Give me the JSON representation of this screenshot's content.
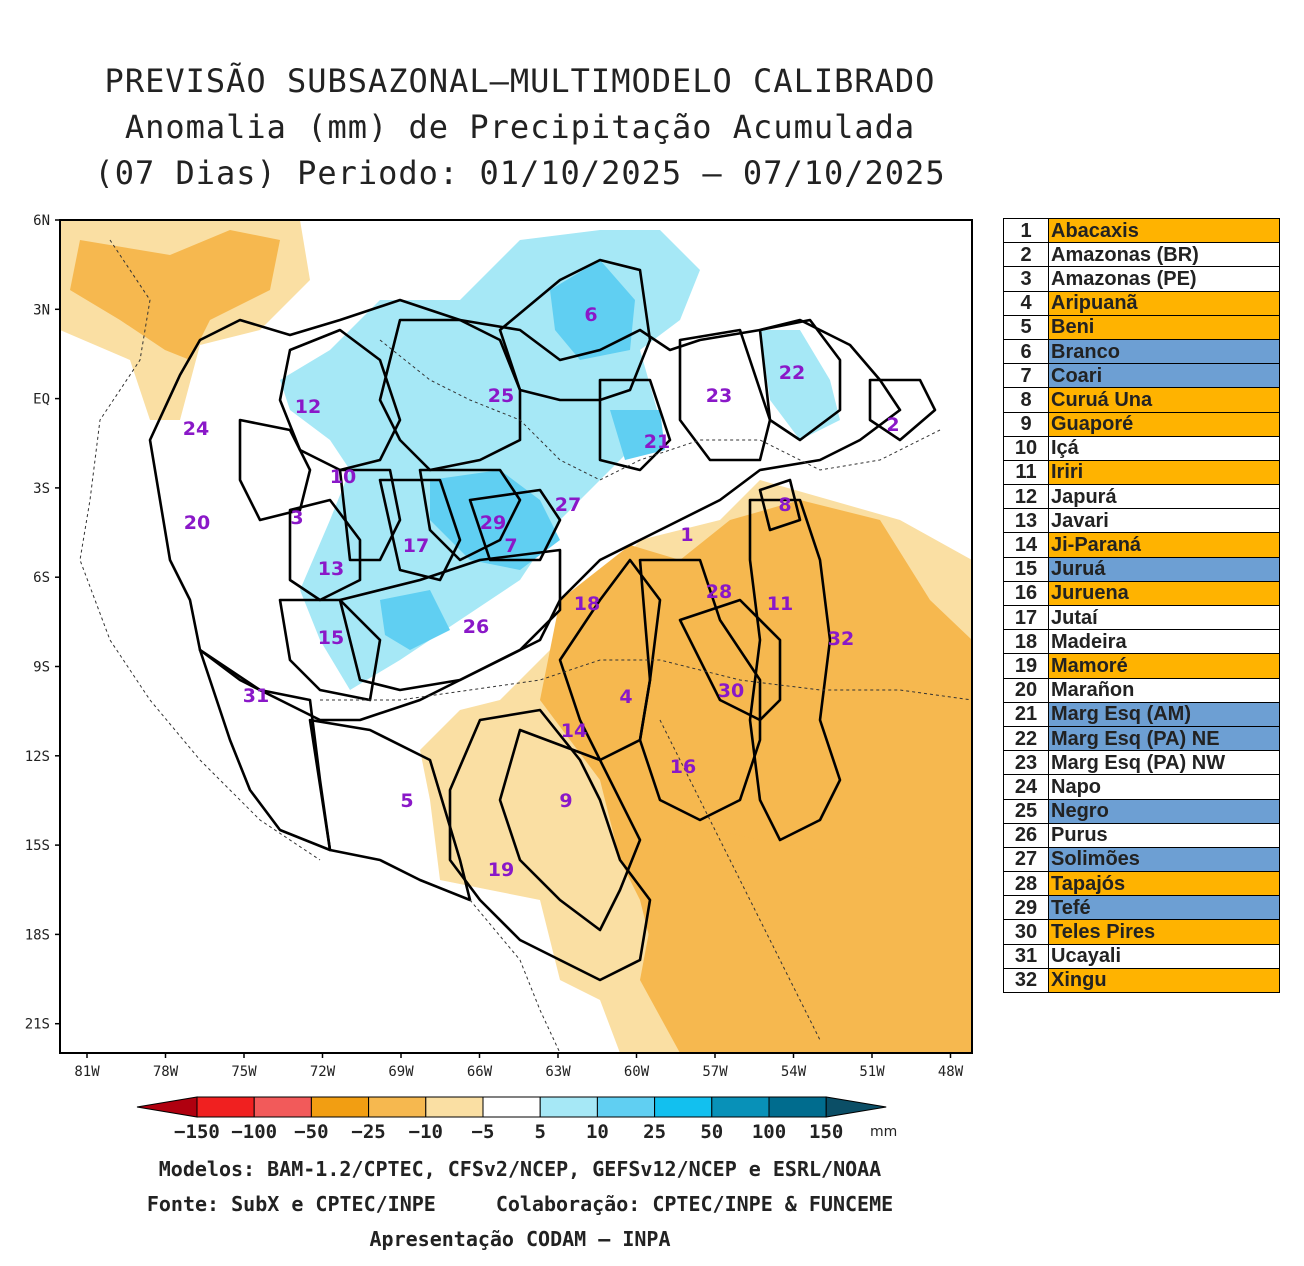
{
  "title": {
    "line1": "PREVISÃO SUBSAZONAL—MULTIMODELO CALIBRADO",
    "line2": "Anomalia (mm) de Precipitação Acumulada",
    "line3": "(07 Dias) Periodo: 01/10/2025 — 07/10/2025"
  },
  "map": {
    "lat_labels": [
      "6N",
      "3N",
      "EQ",
      "3S",
      "6S",
      "9S",
      "12S",
      "15S",
      "18S",
      "21S"
    ],
    "lon_labels": [
      "81W",
      "78W",
      "75W",
      "72W",
      "69W",
      "66W",
      "63W",
      "60W",
      "57W",
      "54W",
      "51W",
      "48W"
    ],
    "basin_labels": [
      "1",
      "2",
      "3",
      "4",
      "5",
      "6",
      "7",
      "8",
      "9",
      "10",
      "11",
      "12",
      "13",
      "14",
      "15",
      "16",
      "17",
      "18",
      "19",
      "20",
      "21",
      "22",
      "23",
      "24",
      "25",
      "26",
      "27",
      "28",
      "29",
      "30",
      "31",
      "32"
    ]
  },
  "basins": [
    {
      "num": "1",
      "name": "Abacaxis",
      "status": "dry"
    },
    {
      "num": "2",
      "name": "Amazonas (BR)",
      "status": "neutral"
    },
    {
      "num": "3",
      "name": "Amazonas (PE)",
      "status": "neutral"
    },
    {
      "num": "4",
      "name": "Aripuanã",
      "status": "dry"
    },
    {
      "num": "5",
      "name": "Beni",
      "status": "dry"
    },
    {
      "num": "6",
      "name": "Branco",
      "status": "wet"
    },
    {
      "num": "7",
      "name": "Coari",
      "status": "wet"
    },
    {
      "num": "8",
      "name": "Curuá Una",
      "status": "dry"
    },
    {
      "num": "9",
      "name": "Guaporé",
      "status": "dry"
    },
    {
      "num": "10",
      "name": "Içá",
      "status": "neutral"
    },
    {
      "num": "11",
      "name": "Iriri",
      "status": "dry"
    },
    {
      "num": "12",
      "name": "Japurá",
      "status": "neutral"
    },
    {
      "num": "13",
      "name": "Javari",
      "status": "neutral"
    },
    {
      "num": "14",
      "name": "Ji-Paraná",
      "status": "dry"
    },
    {
      "num": "15",
      "name": "Juruá",
      "status": "wet"
    },
    {
      "num": "16",
      "name": "Juruena",
      "status": "dry"
    },
    {
      "num": "17",
      "name": "Jutaí",
      "status": "neutral"
    },
    {
      "num": "18",
      "name": "Madeira",
      "status": "neutral"
    },
    {
      "num": "19",
      "name": "Mamoré",
      "status": "dry"
    },
    {
      "num": "20",
      "name": "Marañon",
      "status": "neutral"
    },
    {
      "num": "21",
      "name": "Marg Esq (AM)",
      "status": "wet"
    },
    {
      "num": "22",
      "name": "Marg Esq (PA) NE",
      "status": "wet"
    },
    {
      "num": "23",
      "name": "Marg Esq (PA) NW",
      "status": "neutral"
    },
    {
      "num": "24",
      "name": "Napo",
      "status": "neutral"
    },
    {
      "num": "25",
      "name": "Negro",
      "status": "wet"
    },
    {
      "num": "26",
      "name": "Purus",
      "status": "neutral"
    },
    {
      "num": "27",
      "name": "Solimões",
      "status": "wet"
    },
    {
      "num": "28",
      "name": "Tapajós",
      "status": "dry"
    },
    {
      "num": "29",
      "name": "Tefé",
      "status": "wet"
    },
    {
      "num": "30",
      "name": "Teles Pires",
      "status": "dry"
    },
    {
      "num": "31",
      "name": "Ucayali",
      "status": "neutral"
    },
    {
      "num": "32",
      "name": "Xingu",
      "status": "dry"
    }
  ],
  "status_colors": {
    "dry": "#ffb300",
    "wet": "#6d9fd3",
    "neutral": "#ffffff"
  },
  "colorbar": {
    "unit": "mm",
    "tick_labels": [
      "-150",
      "-100",
      "-50",
      "-25",
      "-10",
      "-5",
      "5",
      "10",
      "25",
      "50",
      "100",
      "150"
    ],
    "colors": [
      "#b0000f",
      "#f02020",
      "#f25a5a",
      "#f29e12",
      "#f6b84f",
      "#fadfa3",
      "#ffffff",
      "#a6e8f6",
      "#60cff2",
      "#12c0ef",
      "#0891b8",
      "#006c8e",
      "#0b4e66"
    ]
  },
  "footer": {
    "models": "Modelos: BAM-1.2/CPTEC, CFSv2/NCEP, GEFSv12/NCEP e ESRL/NOAA",
    "source": "Fonte: SubX e CPTEC/INPE",
    "collab": "Colaboração: CPTEC/INPE & FUNCEME",
    "presentation": "Apresentação CODAM — INPA"
  }
}
